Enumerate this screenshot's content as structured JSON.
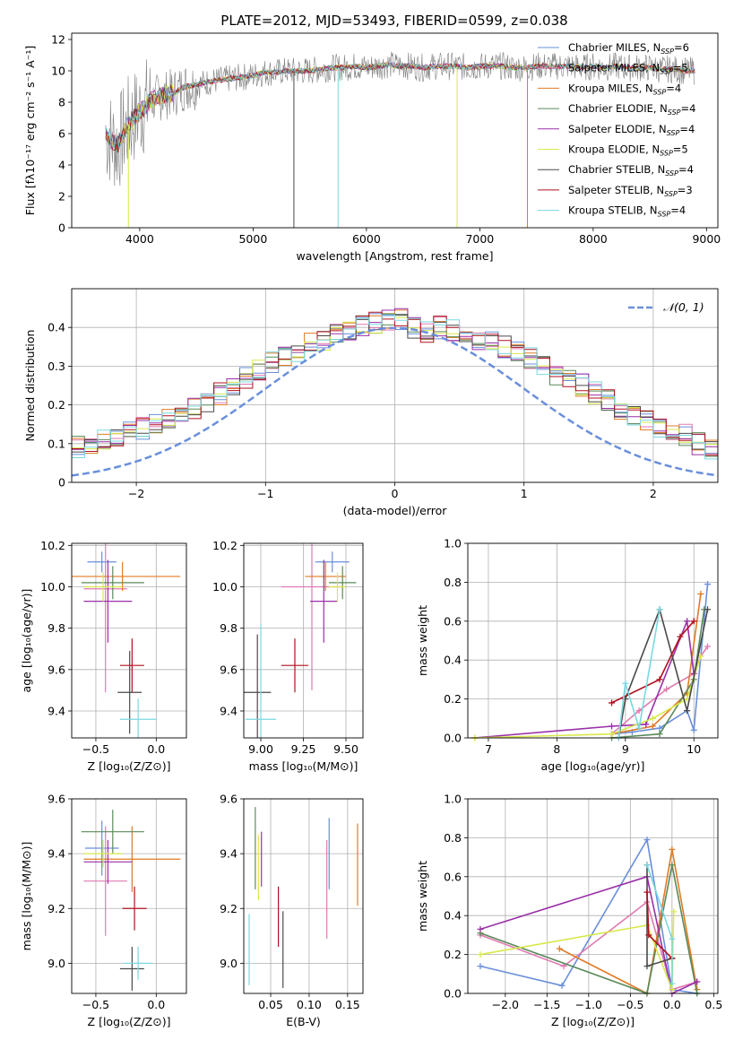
{
  "figure_title": "PLATE=2012, MJD=53493, FIBERID=0599, z=0.038",
  "colors": {
    "chabrier_miles": "#6a8fdb",
    "salpeter_miles": "#e07ab0",
    "kroupa_miles": "#e07b25",
    "chabrier_elodie": "#5a8a5a",
    "salpeter_elodie": "#9a2fa8",
    "kroupa_elodie": "#d8e84a",
    "chabrier_stelib": "#4a4a4a",
    "salpeter_stelib": "#b01020",
    "kroupa_stelib": "#7ad8e0",
    "data_spectrum": "#808080",
    "gaussian": "#6a8fdb"
  },
  "chart_data": [
    {
      "type": "line",
      "title": "PLATE=2012, MJD=53493, FIBERID=0599, z=0.038",
      "xlabel": "wavelength [Angstrom, rest frame]",
      "ylabel": "Flux [fλ10⁻¹⁷ erg cm⁻² s⁻¹ A⁻¹]",
      "xlim": [
        3400,
        9100
      ],
      "ylim": [
        0,
        12.4
      ],
      "xticks": [
        4000,
        5000,
        6000,
        7000,
        8000,
        9000
      ],
      "yticks": [
        0,
        2,
        4,
        6,
        8,
        10,
        12
      ],
      "grid": false,
      "legend_placement": "top-right",
      "legend": [
        {
          "main": "Chabrier MILES, N",
          "sub": "SSP",
          "tail": "=6",
          "key": "chabrier_miles"
        },
        {
          "main": "Salpeter MILES, N",
          "sub": "SSP",
          "tail": "=5",
          "key": "salpeter_miles"
        },
        {
          "main": "Kroupa MILES, N",
          "sub": "SSP",
          "tail": "=4",
          "key": "kroupa_miles"
        },
        {
          "main": "Chabrier ELODIE, N",
          "sub": "SSP",
          "tail": "=4",
          "key": "chabrier_elodie"
        },
        {
          "main": "Salpeter ELODIE, N",
          "sub": "SSP",
          "tail": "=4",
          "key": "salpeter_elodie"
        },
        {
          "main": "Kroupa ELODIE, N",
          "sub": "SSP",
          "tail": "=5",
          "key": "kroupa_elodie"
        },
        {
          "main": "Chabrier STELIB, N",
          "sub": "SSP",
          "tail": "=4",
          "key": "chabrier_stelib"
        },
        {
          "main": "Salpeter STELIB, N",
          "sub": "SSP",
          "tail": "=3",
          "key": "salpeter_stelib"
        },
        {
          "main": "Kroupa STELIB, N",
          "sub": "SSP",
          "tail": "=4",
          "key": "kroupa_stelib"
        }
      ],
      "spectrum_x": [
        3700,
        3800,
        3900,
        4000,
        4100,
        4200,
        4300,
        4400,
        4500,
        4600,
        4700,
        4800,
        4900,
        5000,
        5100,
        5200,
        5300,
        5400,
        5500,
        5600,
        5700,
        5800,
        5900,
        6000,
        6100,
        6200,
        6300,
        6400,
        6500,
        6600,
        6700,
        6800,
        6900,
        7000,
        7100,
        7200,
        7300,
        7400,
        7500,
        7600,
        7700,
        7800,
        7900,
        8000,
        8100,
        8200,
        8300,
        8400,
        8500,
        8600,
        8700,
        8800,
        8900
      ],
      "spectrum_y": [
        6.0,
        5.2,
        6.6,
        7.4,
        8.1,
        8.4,
        8.6,
        9.0,
        9.1,
        9.3,
        9.4,
        9.5,
        9.6,
        9.7,
        9.9,
        9.9,
        10.0,
        10.0,
        10.0,
        10.1,
        10.2,
        10.2,
        10.3,
        10.2,
        10.3,
        10.4,
        10.3,
        10.3,
        10.2,
        10.3,
        10.3,
        10.3,
        10.2,
        10.3,
        10.3,
        10.3,
        10.2,
        10.2,
        10.3,
        10.3,
        10.3,
        10.3,
        10.2,
        10.3,
        10.2,
        10.3,
        10.2,
        10.2,
        10.2,
        10.1,
        10.1,
        10.0,
        10.0
      ],
      "dropouts": [
        {
          "x": 3900,
          "key": "kroupa_elodie"
        },
        {
          "x": 5360,
          "key": "chabrier_stelib"
        },
        {
          "x": 5750,
          "key": "kroupa_stelib"
        },
        {
          "x": 6800,
          "key": "kroupa_elodie"
        },
        {
          "x": 7420,
          "key": "kroupa_miles"
        }
      ]
    },
    {
      "type": "line",
      "xlabel": "(data-model)/error",
      "ylabel": "Normed distribution",
      "xlim": [
        -2.5,
        2.5
      ],
      "ylim": [
        0,
        0.5
      ],
      "xticks": [
        -2,
        -1,
        0,
        1,
        2
      ],
      "yticks": [
        0.0,
        0.1,
        0.2,
        0.3,
        0.4
      ],
      "grid": true,
      "legend_placement": "top-right",
      "legend_label": "𝒩(0, 1)",
      "histogram_bin_width": 0.1,
      "histogram_base": [
        0.02,
        0.025,
        0.03,
        0.04,
        0.045,
        0.05,
        0.06,
        0.07,
        0.08,
        0.085,
        0.09,
        0.1,
        0.11,
        0.12,
        0.13,
        0.14,
        0.15,
        0.165,
        0.18,
        0.19,
        0.21,
        0.23,
        0.25,
        0.27,
        0.29,
        0.31,
        0.33,
        0.34,
        0.36,
        0.37,
        0.38,
        0.39,
        0.4,
        0.41,
        0.42,
        0.42,
        0.4,
        0.39,
        0.4,
        0.39,
        0.38,
        0.37,
        0.36,
        0.35,
        0.34,
        0.32,
        0.3,
        0.28,
        0.27,
        0.25,
        0.23,
        0.21,
        0.19,
        0.17,
        0.16,
        0.14,
        0.13,
        0.12,
        0.1,
        0.09,
        0.08,
        0.07,
        0.06,
        0.055,
        0.05,
        0.04,
        0.035,
        0.03,
        0.025,
        0.02
      ]
    },
    {
      "type": "scatter",
      "xlabel": "Z [log₁₀(Z/Z⊙)]",
      "ylabel": "age  [log₁₀(age/yr)]",
      "xlim": [
        -0.7,
        0.25
      ],
      "ylim": [
        9.27,
        10.21
      ],
      "xticks": [
        -0.5,
        0.0
      ],
      "yticks": [
        9.4,
        9.6,
        9.8,
        10.0,
        10.2
      ],
      "xtick_labels": [
        "−0.5",
        "0.0"
      ],
      "ytick_labels": [
        "9.4",
        "9.6",
        "9.8",
        "10.0",
        "10.2"
      ],
      "grid": true,
      "points": [
        {
          "key": "chabrier_miles",
          "x": -0.45,
          "xerr": 0.12,
          "y": 10.12,
          "yerr": 0.05
        },
        {
          "key": "salpeter_miles",
          "x": -0.42,
          "xerr": 0.18,
          "y": 9.99,
          "yerr": 0.5
        },
        {
          "key": "kroupa_miles",
          "x": -0.28,
          "xerr": 0.48,
          "y": 10.05,
          "yerr": 0.07
        },
        {
          "key": "chabrier_elodie",
          "x": -0.36,
          "xerr": 0.26,
          "y": 10.02,
          "yerr": 0.08
        },
        {
          "key": "salpeter_elodie",
          "x": -0.4,
          "xerr": 0.2,
          "y": 9.93,
          "yerr": 0.2
        },
        {
          "key": "kroupa_elodie",
          "x": -0.44,
          "xerr": 0.16,
          "y": 10.0,
          "yerr": 0.07
        },
        {
          "key": "chabrier_stelib",
          "x": -0.22,
          "xerr": 0.1,
          "y": 9.49,
          "yerr": 0.2
        },
        {
          "key": "salpeter_stelib",
          "x": -0.2,
          "xerr": 0.1,
          "y": 9.62,
          "yerr": 0.13
        },
        {
          "key": "kroupa_stelib",
          "x": -0.15,
          "xerr": 0.15,
          "y": 9.36,
          "yerr": 0.1
        }
      ]
    },
    {
      "type": "scatter",
      "xlabel": "mass [log₁₀(M/M⊙)]",
      "ylabel": "",
      "xlim": [
        8.9,
        9.6
      ],
      "ylim": [
        9.27,
        10.21
      ],
      "xticks": [
        9.0,
        9.25,
        9.5
      ],
      "yticks": [
        9.4,
        9.6,
        9.8,
        10.0,
        10.2
      ],
      "xtick_labels": [
        "9.00",
        "9.25",
        "9.50"
      ],
      "ytick_labels": [
        "9.4",
        "9.6",
        "9.8",
        "10.0",
        "10.2"
      ],
      "grid": true,
      "points": [
        {
          "key": "chabrier_miles",
          "x": 9.42,
          "xerr": 0.1,
          "y": 10.12,
          "yerr": 0.05
        },
        {
          "key": "salpeter_miles",
          "x": 9.3,
          "xerr": 0.18,
          "y": 10.0,
          "yerr": 0.5
        },
        {
          "key": "kroupa_miles",
          "x": 9.38,
          "xerr": 0.12,
          "y": 10.05,
          "yerr": 0.07
        },
        {
          "key": "chabrier_elodie",
          "x": 9.48,
          "xerr": 0.08,
          "y": 10.02,
          "yerr": 0.08
        },
        {
          "key": "salpeter_elodie",
          "x": 9.37,
          "xerr": 0.08,
          "y": 9.93,
          "yerr": 0.2
        },
        {
          "key": "kroupa_elodie",
          "x": 9.45,
          "xerr": 0.05,
          "y": 10.0,
          "yerr": 0.07
        },
        {
          "key": "chabrier_stelib",
          "x": 8.98,
          "xerr": 0.08,
          "y": 9.49,
          "yerr": 0.28
        },
        {
          "key": "salpeter_stelib",
          "x": 9.2,
          "xerr": 0.08,
          "y": 9.62,
          "yerr": 0.13
        },
        {
          "key": "kroupa_stelib",
          "x": 9.0,
          "xerr": 0.09,
          "y": 9.36,
          "yerr": 0.46
        }
      ]
    },
    {
      "type": "line",
      "xlabel": "age  [log₁₀(age/yr)]",
      "ylabel": "mass weight",
      "xlim": [
        6.7,
        10.35
      ],
      "ylim": [
        0,
        1.0
      ],
      "xticks": [
        7,
        8,
        9,
        10
      ],
      "yticks": [
        0.0,
        0.2,
        0.4,
        0.6,
        0.8,
        1.0
      ],
      "xtick_labels": [
        "7",
        "8",
        "9",
        "10"
      ],
      "ytick_labels": [
        "0.0",
        "0.2",
        "0.4",
        "0.6",
        "0.8",
        "1.0"
      ],
      "grid": true,
      "series": [
        {
          "key": "chabrier_miles",
          "x": [
            8.8,
            9.1,
            9.5,
            9.9,
            10.0,
            10.2
          ],
          "y": [
            0.02,
            0.03,
            0.05,
            0.14,
            0.04,
            0.79
          ]
        },
        {
          "key": "salpeter_miles",
          "x": [
            8.8,
            9.2,
            9.6,
            10.0,
            10.1,
            10.2
          ],
          "y": [
            0.02,
            0.14,
            0.25,
            0.33,
            0.42,
            0.47
          ]
        },
        {
          "key": "kroupa_miles",
          "x": [
            8.8,
            9.4,
            9.9,
            10.1
          ],
          "y": [
            0.02,
            0.06,
            0.23,
            0.74
          ]
        },
        {
          "key": "chabrier_elodie",
          "x": [
            8.8,
            9.5,
            10.0,
            10.15
          ],
          "y": [
            0.0,
            0.02,
            0.3,
            0.66
          ]
        },
        {
          "key": "salpeter_elodie",
          "x": [
            6.8,
            8.8,
            9.3,
            9.9,
            10.0
          ],
          "y": [
            0.0,
            0.06,
            0.07,
            0.6,
            0.33
          ]
        },
        {
          "key": "kroupa_elodie",
          "x": [
            6.8,
            8.8,
            9.4,
            9.9,
            10.1
          ],
          "y": [
            0.0,
            0.02,
            0.1,
            0.2,
            0.42
          ]
        },
        {
          "key": "chabrier_stelib",
          "x": [
            8.9,
            9.0,
            9.5,
            9.9,
            10.2
          ],
          "y": [
            0.0,
            0.2,
            0.66,
            0.14,
            0.66
          ]
        },
        {
          "key": "salpeter_stelib",
          "x": [
            8.8,
            9.5,
            9.8,
            10.0
          ],
          "y": [
            0.18,
            0.3,
            0.52,
            0.6
          ]
        },
        {
          "key": "kroupa_stelib",
          "x": [
            8.9,
            9.0,
            9.2,
            9.5
          ],
          "y": [
            0.0,
            0.28,
            0.05,
            0.66
          ]
        }
      ]
    },
    {
      "type": "scatter",
      "xlabel": "Z [log₁₀(Z/Z⊙)]",
      "ylabel": "mass [log₁₀(M/M⊙)]",
      "xlim": [
        -0.7,
        0.25
      ],
      "ylim": [
        8.89,
        9.6
      ],
      "xticks": [
        -0.5,
        0.0
      ],
      "yticks": [
        9.0,
        9.2,
        9.4,
        9.6
      ],
      "xtick_labels": [
        "−0.5",
        "0.0"
      ],
      "ytick_labels": [
        "9.0",
        "9.2",
        "9.4",
        "9.6"
      ],
      "grid": true,
      "points": [
        {
          "key": "chabrier_miles",
          "x": -0.45,
          "xerr": 0.14,
          "y": 9.42,
          "yerr": 0.1
        },
        {
          "key": "salpeter_miles",
          "x": -0.42,
          "xerr": 0.18,
          "y": 9.3,
          "yerr": 0.2
        },
        {
          "key": "kroupa_miles",
          "x": -0.2,
          "xerr": 0.4,
          "y": 9.38,
          "yerr": 0.12
        },
        {
          "key": "chabrier_elodie",
          "x": -0.36,
          "xerr": 0.26,
          "y": 9.48,
          "yerr": 0.08
        },
        {
          "key": "salpeter_elodie",
          "x": -0.4,
          "xerr": 0.2,
          "y": 9.37,
          "yerr": 0.08
        },
        {
          "key": "kroupa_elodie",
          "x": -0.44,
          "xerr": 0.16,
          "y": 9.4,
          "yerr": 0.05
        },
        {
          "key": "chabrier_stelib",
          "x": -0.2,
          "xerr": 0.1,
          "y": 8.98,
          "yerr": 0.08
        },
        {
          "key": "salpeter_stelib",
          "x": -0.18,
          "xerr": 0.1,
          "y": 9.2,
          "yerr": 0.08
        },
        {
          "key": "kroupa_stelib",
          "x": -0.15,
          "xerr": 0.12,
          "y": 9.0,
          "yerr": 0.06
        }
      ]
    },
    {
      "type": "scatter",
      "xlabel": "E(B-V)",
      "ylabel": "",
      "xlim": [
        0.015,
        0.17
      ],
      "ylim": [
        8.89,
        9.6
      ],
      "xticks": [
        0.05,
        0.1,
        0.15
      ],
      "yticks": [
        9.0,
        9.2,
        9.4,
        9.6
      ],
      "xtick_labels": [
        "0.05",
        "0.10",
        "0.15"
      ],
      "ytick_labels": [
        "9.0",
        "9.2",
        "9.4",
        "9.6"
      ],
      "grid": true,
      "points": [
        {
          "key": "chabrier_miles",
          "x": 0.126,
          "y": 9.4,
          "yerr": 0.13
        },
        {
          "key": "salpeter_miles",
          "x": 0.123,
          "y": 9.27,
          "yerr": 0.18
        },
        {
          "key": "kroupa_miles",
          "x": 0.163,
          "y": 9.36,
          "yerr": 0.15
        },
        {
          "key": "chabrier_elodie",
          "x": 0.03,
          "y": 9.42,
          "yerr": 0.15
        },
        {
          "key": "salpeter_elodie",
          "x": 0.038,
          "y": 9.38,
          "yerr": 0.1
        },
        {
          "key": "kroupa_elodie",
          "x": 0.034,
          "y": 9.35,
          "yerr": 0.12
        },
        {
          "key": "chabrier_stelib",
          "x": 0.066,
          "y": 9.05,
          "yerr": 0.14
        },
        {
          "key": "salpeter_stelib",
          "x": 0.06,
          "y": 9.17,
          "yerr": 0.11
        },
        {
          "key": "kroupa_stelib",
          "x": 0.022,
          "y": 9.05,
          "yerr": 0.13
        }
      ]
    },
    {
      "type": "line",
      "xlabel": "Z [log₁₀(Z/Z⊙)]",
      "ylabel": "mass weight",
      "xlim": [
        -2.45,
        0.55
      ],
      "ylim": [
        0,
        1.0
      ],
      "xticks": [
        -2.0,
        -1.5,
        -1.0,
        -0.5,
        0.0,
        0.5
      ],
      "yticks": [
        0.0,
        0.2,
        0.4,
        0.6,
        0.8,
        1.0
      ],
      "xtick_labels": [
        "−2.0",
        "−1.5",
        "−1.0",
        "−0.5",
        "0.0",
        "0.5"
      ],
      "ytick_labels": [
        "0.0",
        "0.2",
        "0.4",
        "0.6",
        "0.8",
        "1.0"
      ],
      "grid": true,
      "series": [
        {
          "key": "chabrier_miles",
          "x": [
            -2.3,
            -1.32,
            -0.3,
            0.0,
            0.3
          ],
          "y": [
            0.14,
            0.04,
            0.79,
            0.02,
            0.0
          ]
        },
        {
          "key": "salpeter_miles",
          "x": [
            -2.3,
            -1.3,
            -0.3,
            0.0,
            0.3
          ],
          "y": [
            0.3,
            0.14,
            0.47,
            0.02,
            0.06
          ]
        },
        {
          "key": "kroupa_miles",
          "x": [
            -1.35,
            -0.3,
            0.0,
            0.3
          ],
          "y": [
            0.23,
            0.0,
            0.74,
            0.02
          ]
        },
        {
          "key": "chabrier_elodie",
          "x": [
            -2.3,
            -0.3,
            0.0,
            0.3
          ],
          "y": [
            0.31,
            0.0,
            0.66,
            0.0
          ]
        },
        {
          "key": "salpeter_elodie",
          "x": [
            -2.3,
            -0.3,
            0.0,
            0.3
          ],
          "y": [
            0.33,
            0.6,
            0.0,
            0.06
          ]
        },
        {
          "key": "kroupa_elodie",
          "x": [
            -2.3,
            -0.3,
            0.0,
            0.02
          ],
          "y": [
            0.2,
            0.35,
            0.02,
            0.42
          ]
        },
        {
          "key": "chabrier_stelib",
          "x": [
            -0.3,
            -0.3,
            0.0
          ],
          "y": [
            0.66,
            0.14,
            0.18
          ]
        },
        {
          "key": "salpeter_stelib",
          "x": [
            -0.3,
            -0.28,
            0.0
          ],
          "y": [
            0.52,
            0.3,
            0.18
          ]
        },
        {
          "key": "kroupa_stelib",
          "x": [
            -0.3,
            0.0,
            0.0
          ],
          "y": [
            0.66,
            0.28,
            0.05
          ]
        }
      ]
    }
  ]
}
